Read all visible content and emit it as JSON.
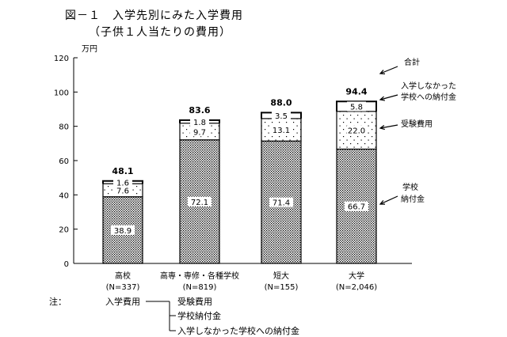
{
  "figure": {
    "title": "図－１　入学先別にみた入学費用",
    "subtitle": "（子供１人当たりの費用）",
    "unit": "万円"
  },
  "chart_data": {
    "type": "bar",
    "stacked": true,
    "categories": [
      "高校\n(N=337)",
      "高専・専修・各種学校\n(N=819)",
      "短大\n(N=155)",
      "大学\n(N=2,046)"
    ],
    "category_labels": [
      {
        "name": "高校",
        "n": "(N=337)"
      },
      {
        "name": "高専・専修・各種学校",
        "n": "(N=819)"
      },
      {
        "name": "短大",
        "n": "(N=155)"
      },
      {
        "name": "大学",
        "n": "(N=2,046)"
      }
    ],
    "series": [
      {
        "name": "学校納付金",
        "values": [
          38.9,
          72.1,
          71.4,
          66.7
        ],
        "labels": [
          "38.9",
          "72.1",
          "71.4",
          "66.7"
        ]
      },
      {
        "name": "受験費用",
        "values": [
          7.6,
          9.7,
          13.1,
          22.0
        ],
        "labels": [
          "7.6",
          "9.7",
          "13.1",
          "22.0"
        ]
      },
      {
        "name": "入学しなかった学校への納付金",
        "values": [
          1.6,
          1.8,
          3.5,
          5.8
        ],
        "labels": [
          "1.6",
          "1.8",
          "3.5",
          "5.8"
        ]
      }
    ],
    "totals": [
      48.1,
      83.6,
      88.0,
      94.4
    ],
    "total_labels": [
      "48.1",
      "83.6",
      "88.0",
      "94.4"
    ],
    "ylim": [
      0,
      120
    ],
    "yticks": [
      0,
      20,
      40,
      60,
      80,
      100,
      120
    ],
    "ylabel": "万円",
    "annotations": [
      "合計",
      "入学しなかった\n学校への納付金",
      "受験費用",
      "学校\n納付金"
    ]
  },
  "note": {
    "prefix": "注：",
    "root": "入学費用",
    "items": [
      "受験費用",
      "学校納付金",
      "入学しなかった学校への納付金"
    ]
  }
}
